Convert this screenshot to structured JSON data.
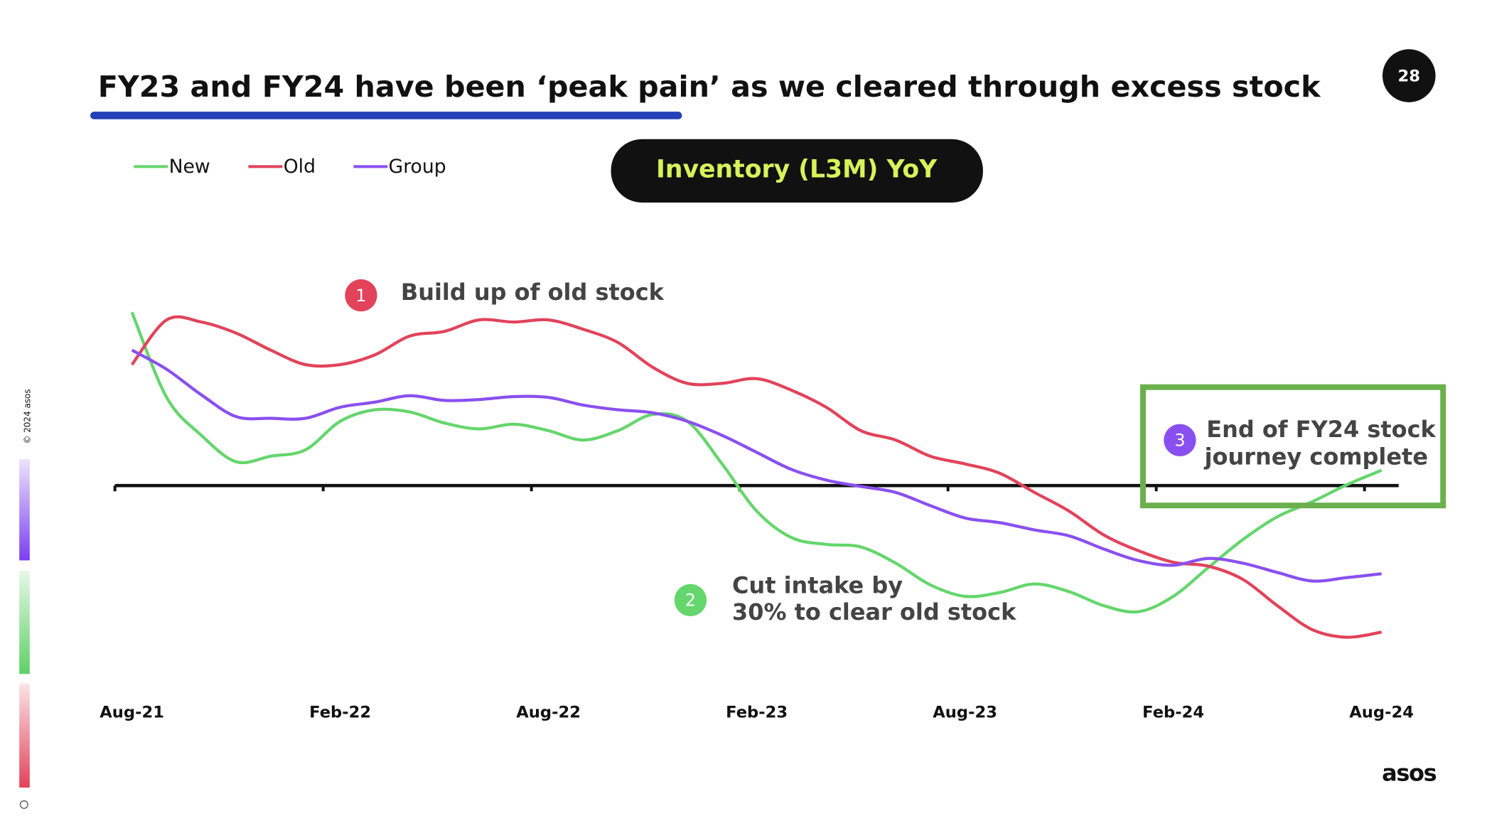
{
  "page_number": "28",
  "logo": "asos",
  "sidebar": "© 2024 asos",
  "chart_data": {
    "type": "line",
    "title": "FY23 and FY24 have been ‘peak pain’ as we cleared through excess stock",
    "subtitle": "Inventory (L3M) YoY",
    "categories": [
      "Aug-21",
      null,
      null,
      null,
      null,
      null,
      "Feb-22",
      null,
      null,
      null,
      null,
      null,
      "Aug-22",
      null,
      null,
      null,
      null,
      null,
      "Feb-23",
      null,
      null,
      null,
      null,
      null,
      "Aug-23",
      null,
      null,
      null,
      null,
      null,
      "Feb-24",
      null,
      null,
      null,
      null,
      null,
      "Aug-24"
    ],
    "ylim": [
      -46,
      52
    ],
    "series": [
      {
        "name": "New",
        "color": "#64d66c",
        "values": [
          40.7,
          20.7,
          11.8,
          5.6,
          6.9,
          8.4,
          15.1,
          17.8,
          17.3,
          14.7,
          13.3,
          14.4,
          12.9,
          10.7,
          12.9,
          16.7,
          15.1,
          5.1,
          -6.0,
          -12.2,
          -13.8,
          -14.4,
          -18.2,
          -23.3,
          -26.0,
          -25.1,
          -23.1,
          -24.9,
          -28.2,
          -29.6,
          -26.0,
          -19.3,
          -12.7,
          -7.3,
          -3.8,
          0.2,
          3.6
        ]
      },
      {
        "name": "Old",
        "color": "#e2435a",
        "values": [
          28.4,
          38.9,
          38.4,
          35.8,
          31.8,
          28.4,
          28.4,
          30.7,
          35.1,
          36.2,
          38.9,
          38.4,
          38.9,
          36.7,
          33.6,
          27.8,
          24.0,
          24.0,
          25.1,
          22.4,
          18.4,
          12.9,
          10.7,
          6.9,
          5.1,
          2.9,
          -1.6,
          -6.0,
          -11.6,
          -15.3,
          -18.0,
          -18.9,
          -22.0,
          -28.2,
          -33.8,
          -35.6,
          -34.4
        ]
      },
      {
        "name": "Group",
        "color": "#8a4ff0",
        "values": [
          31.8,
          27.3,
          21.3,
          16.2,
          15.8,
          15.8,
          18.4,
          19.6,
          21.1,
          20.0,
          20.2,
          20.9,
          20.7,
          18.9,
          17.8,
          17.1,
          15.1,
          11.8,
          7.8,
          3.8,
          1.3,
          -0.2,
          -1.6,
          -4.7,
          -7.6,
          -8.7,
          -10.4,
          -11.8,
          -14.9,
          -17.6,
          -18.7,
          -17.1,
          -18.2,
          -20.4,
          -22.4,
          -21.6,
          -20.7
        ]
      }
    ],
    "annotations": [
      {
        "number": "1",
        "lines": [
          "Build up of old stock"
        ]
      },
      {
        "number": "2",
        "lines": [
          "Cut intake by",
          "30% to clear old stock"
        ]
      },
      {
        "number": "3",
        "lines": [
          "End of FY24 stock",
          "journey complete"
        ]
      }
    ]
  }
}
